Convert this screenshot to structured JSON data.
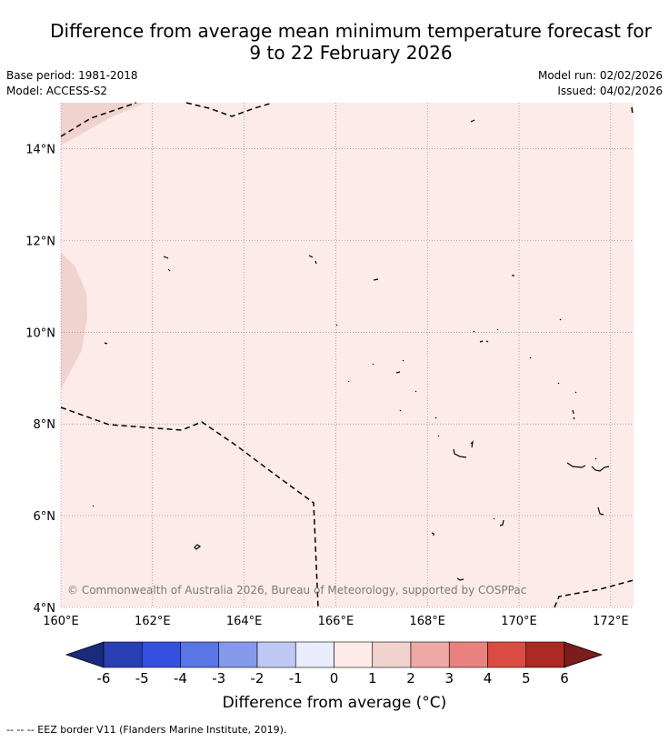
{
  "header": {
    "title_line1": "Difference from average mean minimum temperature forecast for",
    "title_line2": "9 to 22 February 2026",
    "base_period": "Base period: 1981-2018",
    "model": "Model: ACCESS-S2",
    "model_run": "Model run: 02/02/2026",
    "issued": "Issued: 04/02/2026"
  },
  "map": {
    "lon_range": [
      160,
      172.5
    ],
    "lat_range": [
      4,
      15
    ],
    "lon_ticks": [
      "160°E",
      "162°E",
      "164°E",
      "166°E",
      "168°E",
      "170°E",
      "172°E"
    ],
    "lat_ticks": [
      "4°N",
      "6°N",
      "8°N",
      "10°N",
      "12°N",
      "14°N"
    ],
    "copyright": "© Commonwealth of Australia 2026, Bureau of Meteorology, supported by COSPPac",
    "background_color": "#fcebe8",
    "warm_patch_color": "#f0d3cf",
    "grid": "dotted"
  },
  "colorbar": {
    "ticks": [
      "-6",
      "-5",
      "-4",
      "-3",
      "-2",
      "-1",
      "0",
      "1",
      "2",
      "3",
      "4",
      "5",
      "6"
    ],
    "colors": [
      "#2a3fb4",
      "#3550e0",
      "#5b74e6",
      "#8599ea",
      "#bfc8f3",
      "#e8ecfb",
      "#fcebe8",
      "#f0d3cf",
      "#efa9a6",
      "#e8827e",
      "#db4b41",
      "#ad2a24"
    ],
    "under_color": "#1b2a7d",
    "over_color": "#7c1d1b",
    "label": "Difference from average (°C)"
  },
  "footer": {
    "legend": "--  --  -- EEZ border V11 (Flanders Marine Institute, 2019)."
  }
}
